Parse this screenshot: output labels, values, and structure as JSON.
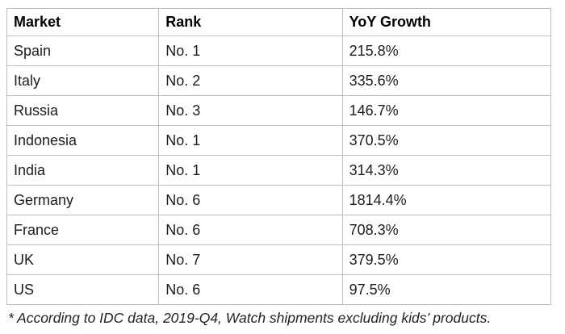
{
  "chart_data": {
    "type": "table",
    "columns": [
      "Market",
      "Rank",
      "YoY Growth"
    ],
    "rows": [
      [
        "Spain",
        "No. 1",
        "215.8%"
      ],
      [
        "Italy",
        "No. 2",
        "335.6%"
      ],
      [
        "Russia",
        "No. 3",
        "146.7%"
      ],
      [
        "Indonesia",
        "No. 1",
        "370.5%"
      ],
      [
        "India",
        "No. 1",
        "314.3%"
      ],
      [
        "Germany",
        "No. 6",
        "1814.4%"
      ],
      [
        "France",
        "No. 6",
        "708.3%"
      ],
      [
        "UK",
        "No. 7",
        "379.5%"
      ],
      [
        "US",
        "No. 6",
        "97.5%"
      ]
    ],
    "footnote": "* According to IDC data, 2019-Q4, Watch shipments excluding kids’ products.",
    "layout": {
      "border_color": "#bdbdbd",
      "text_color": "#1c1c1c",
      "background": "#ffffff"
    }
  }
}
